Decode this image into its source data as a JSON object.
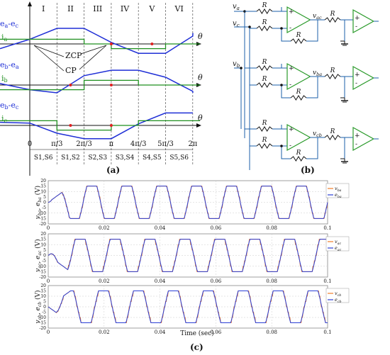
{
  "panel_a": {
    "label": "(a)",
    "sectors": [
      "I",
      "II",
      "III",
      "IV",
      "V",
      "VI"
    ],
    "theta": "θ",
    "waves": [
      {
        "label": "e_a-e_c",
        "t1": "e",
        "s1": "a",
        "mid": "-e",
        "s2": "c",
        "current": "i",
        "cs": "a"
      },
      {
        "label": "e_b-e_a",
        "t1": "e",
        "s1": "b",
        "mid": "-e",
        "s2": "a",
        "current": "i",
        "cs": "b"
      },
      {
        "label": "e_b-e_c",
        "t1": "e",
        "s1": "b",
        "mid": "-e",
        "s2": "c",
        "current": "i",
        "cs": "c"
      }
    ],
    "annotations": {
      "zcp": "ZCP",
      "cp": "CP"
    },
    "angle_ticks": [
      "0",
      "π/3",
      "2π/3",
      "π",
      "4π/3",
      "5π/3",
      "2π"
    ],
    "switch_pairs": [
      "S1,S6",
      "S1,S2",
      "S2,S3",
      "S3,S4",
      "S4,S5",
      "S5,S6"
    ],
    "colors": {
      "bemf": "#1f2fd6",
      "current": "#1f8f1f",
      "point": "#e02020"
    }
  },
  "panel_b": {
    "label": "(b)",
    "inputs": [
      {
        "t": "v",
        "s": "a"
      },
      {
        "t": "v",
        "s": "c"
      },
      {
        "t": "v",
        "s": "b"
      }
    ],
    "outputs": [
      {
        "t": "v",
        "s": "ac"
      },
      {
        "t": "v",
        "s": "ba"
      },
      {
        "t": "v",
        "s": "cb"
      }
    ],
    "resistor_label": "R",
    "plus": "+",
    "minus": "-",
    "colors": {
      "wire": "#1b5fa8",
      "opamp": "#2a9a2a",
      "resistor": "#111111"
    }
  },
  "panel_c": {
    "label": "(c)",
    "xlabel": "Time (sec)",
    "x_ticks": [
      "0",
      "0.02",
      "0.04",
      "0.06",
      "0.08",
      "0.1"
    ],
    "y_ticks": [
      "20",
      "15",
      "10",
      "5",
      "0",
      "-5",
      "-10",
      "-15",
      "-20"
    ],
    "plots": [
      {
        "ylabel": {
          "p1": "v",
          "s1": "ba",
          "mid": ", e",
          "s2": "ba",
          "unit": "(V)"
        },
        "legend": [
          {
            "t": "v",
            "s": "ba"
          },
          {
            "t": "e",
            "s": "ba"
          }
        ]
      },
      {
        "ylabel": {
          "p1": "v",
          "s1": "ac",
          "mid": ", e",
          "s2": "ac",
          "unit": "(V)"
        },
        "legend": [
          {
            "t": "v",
            "s": "ac"
          },
          {
            "t": "e",
            "s": "ac"
          }
        ]
      },
      {
        "ylabel": {
          "p1": "v",
          "s1": "cb",
          "mid": ", e",
          "s2": "cb",
          "unit": "(V)"
        },
        "legend": [
          {
            "t": "v",
            "s": "cb"
          },
          {
            "t": "e",
            "s": "cb"
          }
        ]
      }
    ],
    "colors": {
      "v": "#f07d2a",
      "e": "#2b3fd6"
    }
  }
}
